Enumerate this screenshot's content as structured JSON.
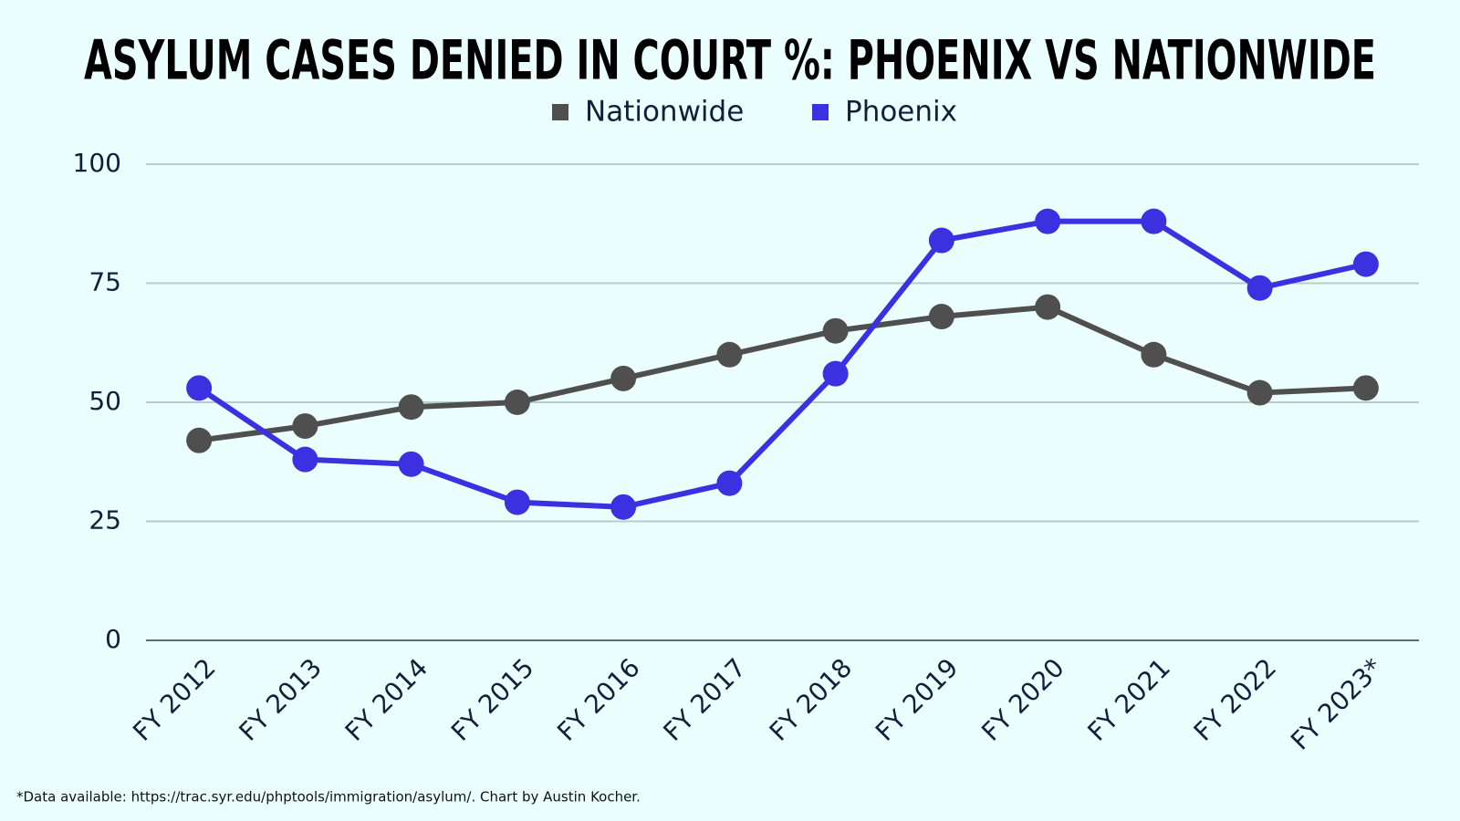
{
  "chart_data": {
    "type": "line",
    "title": "ASYLUM CASES DENIED IN COURT %: PHOENIX VS NATIONWIDE",
    "categories": [
      "FY 2012",
      "FY 2013",
      "FY 2014",
      "FY 2015",
      "FY 2016",
      "FY 2017",
      "FY 2018",
      "FY 2019",
      "FY 2020",
      "FY 2021",
      "FY 2022",
      "FY 2023*"
    ],
    "series": [
      {
        "name": "Nationwide",
        "color": "#4f4f4f",
        "values": [
          42,
          45,
          49,
          50,
          55,
          60,
          65,
          68,
          70,
          60,
          52,
          53
        ]
      },
      {
        "name": "Phoenix",
        "color": "#3c30e0",
        "values": [
          53,
          38,
          37,
          29,
          28,
          33,
          56,
          84,
          88,
          88,
          74,
          79
        ]
      }
    ],
    "ylim": [
      0,
      100
    ],
    "yticks": [
      0,
      25,
      50,
      75,
      100
    ],
    "grid": true,
    "note": "*Data available: https://trac.syr.edu/phptools/immigration/asylum/. Chart by Austin Kocher."
  }
}
